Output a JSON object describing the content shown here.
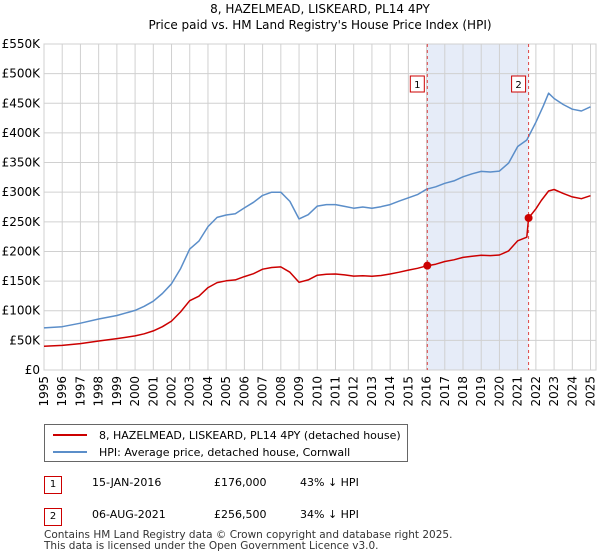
{
  "chart_data": {
    "type": "line",
    "title": "8, HAZELMEAD, LISKEARD, PL14 4PY",
    "subtitle": "Price paid vs. HM Land Registry's House Price Index (HPI)",
    "xlim": [
      1995,
      2025.3
    ],
    "ylim": [
      0,
      550000
    ],
    "x_ticks": [
      1995,
      1996,
      1997,
      1998,
      1999,
      2000,
      2001,
      2002,
      2003,
      2004,
      2005,
      2006,
      2007,
      2008,
      2009,
      2010,
      2011,
      2012,
      2013,
      2014,
      2015,
      2016,
      2017,
      2018,
      2019,
      2020,
      2021,
      2022,
      2023,
      2024,
      2025
    ],
    "y_ticks": [
      {
        "value": 0,
        "label": "£0"
      },
      {
        "value": 50000,
        "label": "£50K"
      },
      {
        "value": 100000,
        "label": "£100K"
      },
      {
        "value": 150000,
        "label": "£150K"
      },
      {
        "value": 200000,
        "label": "£200K"
      },
      {
        "value": 250000,
        "label": "£250K"
      },
      {
        "value": 300000,
        "label": "£300K"
      },
      {
        "value": 350000,
        "label": "£350K"
      },
      {
        "value": 400000,
        "label": "£400K"
      },
      {
        "value": 450000,
        "label": "£450K"
      },
      {
        "value": 500000,
        "label": "£500K"
      },
      {
        "value": 550000,
        "label": "£550K"
      }
    ],
    "grid": true,
    "shaded_region": [
      2016.04,
      2021.6
    ],
    "series": [
      {
        "name": "8, HAZELMEAD, LISKEARD, PL14 4PY (detached house)",
        "color": "#cc0000",
        "x": [
          1995,
          1996,
          1997,
          1998,
          1999,
          2000,
          2000.5,
          2001,
          2001.5,
          2002,
          2002.5,
          2003,
          2003.5,
          2004,
          2004.5,
          2005,
          2005.5,
          2006,
          2006.5,
          2007,
          2007.5,
          2008,
          2008.5,
          2009,
          2009.5,
          2010,
          2010.5,
          2011,
          2011.5,
          2012,
          2012.5,
          2013,
          2013.5,
          2014,
          2014.5,
          2015,
          2015.5,
          2016.04,
          2016.5,
          2017,
          2017.5,
          2018,
          2018.5,
          2019,
          2019.5,
          2020,
          2020.5,
          2021,
          2021.5,
          2021.6,
          2022,
          2022.3,
          2022.7,
          2023,
          2023.5,
          2024,
          2024.5,
          2025
        ],
        "values": [
          40000,
          41500,
          44500,
          49000,
          53000,
          57500,
          61000,
          66000,
          73000,
          82500,
          98000,
          117000,
          124500,
          139000,
          147500,
          150500,
          152000,
          157500,
          162500,
          170000,
          173000,
          174000,
          165000,
          148000,
          152000,
          160000,
          161500,
          162000,
          160500,
          158500,
          159000,
          158000,
          159500,
          162000,
          165000,
          168500,
          171500,
          176000,
          178500,
          183000,
          186000,
          190000,
          192000,
          193500,
          193000,
          194000,
          201000,
          218000,
          224000,
          256500,
          272000,
          286000,
          302000,
          304500,
          298000,
          292000,
          289000,
          294000
        ]
      },
      {
        "name": "HPI: Average price, detached house, Cornwall",
        "color": "#5b8ec9",
        "x": [
          1995,
          1996,
          1997,
          1998,
          1999,
          2000,
          2000.5,
          2001,
          2001.5,
          2002,
          2002.5,
          2003,
          2003.5,
          2004,
          2004.5,
          2005,
          2005.5,
          2006,
          2006.5,
          2007,
          2007.5,
          2008,
          2008.5,
          2009,
          2009.5,
          2010,
          2010.5,
          2011,
          2011.5,
          2012,
          2012.5,
          2013,
          2013.5,
          2014,
          2014.5,
          2015,
          2015.5,
          2016,
          2016.5,
          2017,
          2017.5,
          2018,
          2018.5,
          2019,
          2019.5,
          2020,
          2020.5,
          2021,
          2021.5,
          2022,
          2022.4,
          2022.7,
          2023,
          2023.5,
          2024,
          2024.5,
          2025
        ],
        "values": [
          71000,
          73000,
          79000,
          86000,
          92000,
          100500,
          107500,
          116000,
          129000,
          145500,
          171000,
          204000,
          217500,
          242000,
          257500,
          261500,
          263500,
          273500,
          283000,
          294500,
          300000,
          300000,
          284500,
          255000,
          262000,
          276500,
          279000,
          279000,
          276000,
          273000,
          275000,
          273000,
          275500,
          279000,
          285000,
          290500,
          296000,
          305000,
          309000,
          315000,
          319000,
          326000,
          331000,
          335000,
          334000,
          335500,
          349000,
          377000,
          388000,
          418000,
          445000,
          467000,
          458000,
          448000,
          440000,
          437000,
          444000
        ]
      }
    ],
    "annotations": [
      {
        "label": "1",
        "x": 2016.04,
        "value": 176000
      },
      {
        "label": "2",
        "x": 2021.6,
        "value": 256500
      }
    ]
  },
  "legend": {
    "items": [
      {
        "label": "8, HAZELMEAD, LISKEARD, PL14 4PY (detached house)",
        "color": "#cc0000"
      },
      {
        "label": "HPI: Average price, detached house, Cornwall",
        "color": "#5b8ec9"
      }
    ]
  },
  "sales": [
    {
      "num": "1",
      "date": "15-JAN-2016",
      "price": "£176,000",
      "hpi": "43% ↓ HPI"
    },
    {
      "num": "2",
      "date": "06-AUG-2021",
      "price": "£256,500",
      "hpi": "34% ↓ HPI"
    }
  ],
  "footer": {
    "line1": "Contains HM Land Registry data © Crown copyright and database right 2025.",
    "line2": "This data is licensed under the Open Government Licence v3.0."
  }
}
